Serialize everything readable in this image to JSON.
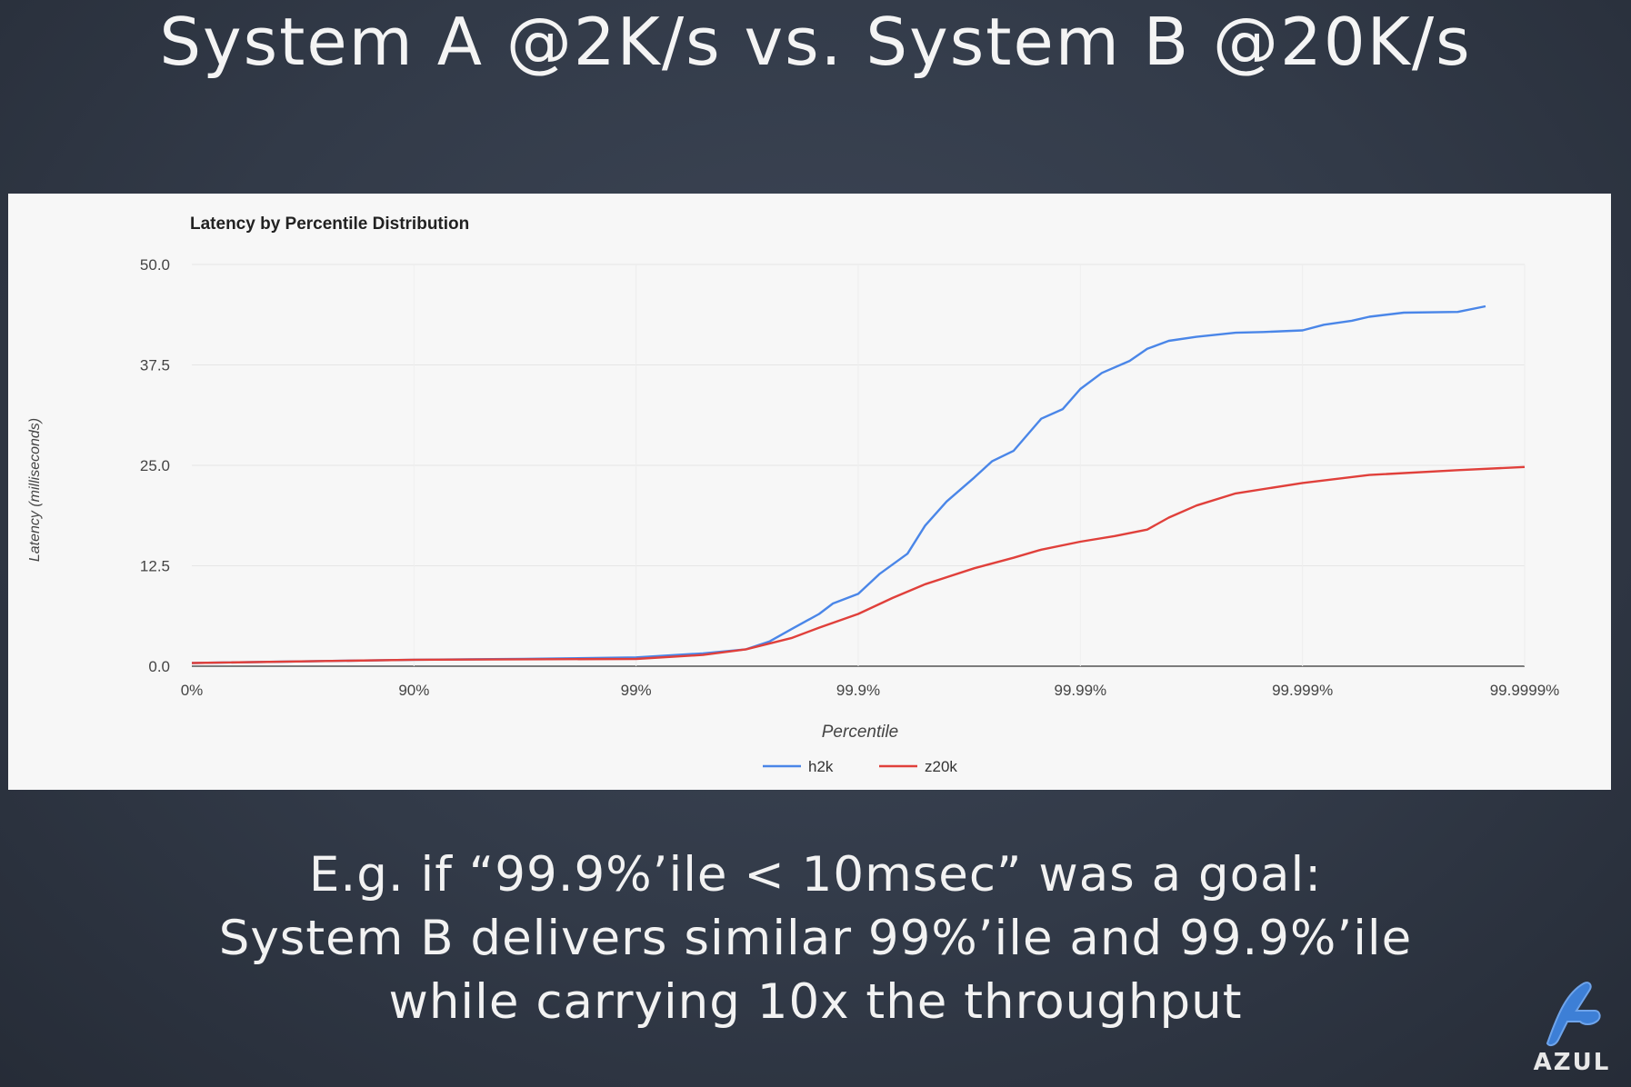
{
  "slide": {
    "title": "System A @2K/s vs. System B @20K/s",
    "caption_lines": [
      "E.g. if “99.9%’ile < 10msec” was a goal:",
      "System B delivers similar 99%’ile and 99.9%’ile",
      "while carrying 10x the throughput"
    ],
    "logo_text": "AZUL",
    "logo_icon": "azul-logo-icon"
  },
  "chart_data": {
    "type": "line",
    "title": "Latency by Percentile Distribution",
    "xlabel": "Percentile",
    "ylabel": "Latency (milliseconds)",
    "x_scale": "log10(1/(1-percentile))",
    "x_ticks": [
      "0%",
      "90%",
      "99%",
      "99.9%",
      "99.99%",
      "99.999%",
      "99.9999%"
    ],
    "y_ticks": [
      "0.0",
      "12.5",
      "25.0",
      "37.5",
      "50.0"
    ],
    "ylim": [
      0,
      50
    ],
    "grid": true,
    "legend_position": "bottom",
    "colors": {
      "h2k": "#4a86e8",
      "z20k": "#e0403b"
    },
    "series": [
      {
        "name": "h2k",
        "points": [
          [
            "0%",
            0.4
          ],
          [
            "90%",
            0.8
          ],
          [
            "96.8%",
            0.9
          ],
          [
            "99%",
            1.1
          ],
          [
            "99.5%",
            1.6
          ],
          [
            "99.68%",
            2.1
          ],
          [
            "99.75%",
            3.1
          ],
          [
            "99.8%",
            4.6
          ],
          [
            "99.85%",
            6.5
          ],
          [
            "99.87%",
            7.8
          ],
          [
            "99.9%",
            9.0
          ],
          [
            "99.92%",
            11.5
          ],
          [
            "99.94%",
            14.0
          ],
          [
            "99.95%",
            17.5
          ],
          [
            "99.96%",
            20.5
          ],
          [
            "99.97%",
            23.5
          ],
          [
            "99.975%",
            25.5
          ],
          [
            "99.98%",
            26.8
          ],
          [
            "99.985%",
            30.8
          ],
          [
            "99.988%",
            32.0
          ],
          [
            "99.99%",
            34.5
          ],
          [
            "99.992%",
            36.5
          ],
          [
            "99.994%",
            38.0
          ],
          [
            "99.995%",
            39.5
          ],
          [
            "99.996%",
            40.5
          ],
          [
            "99.997%",
            41.0
          ],
          [
            "99.998%",
            41.5
          ],
          [
            "99.9985%",
            41.6
          ],
          [
            "99.999%",
            41.8
          ],
          [
            "99.9992%",
            42.5
          ],
          [
            "99.9994%",
            43.0
          ],
          [
            "99.9995%",
            43.5
          ],
          [
            "99.99965%",
            44.0
          ],
          [
            "99.9998%",
            44.1
          ],
          [
            "99.99985%",
            44.8
          ]
        ]
      },
      {
        "name": "z20k",
        "points": [
          [
            "0%",
            0.4
          ],
          [
            "90%",
            0.8
          ],
          [
            "99%",
            0.9
          ],
          [
            "99.5%",
            1.4
          ],
          [
            "99.68%",
            2.1
          ],
          [
            "99.8%",
            3.5
          ],
          [
            "99.85%",
            4.8
          ],
          [
            "99.9%",
            6.5
          ],
          [
            "99.93%",
            8.5
          ],
          [
            "99.95%",
            10.2
          ],
          [
            "99.97%",
            12.2
          ],
          [
            "99.98%",
            13.5
          ],
          [
            "99.985%",
            14.5
          ],
          [
            "99.99%",
            15.5
          ],
          [
            "99.993%",
            16.2
          ],
          [
            "99.995%",
            17.0
          ],
          [
            "99.996%",
            18.5
          ],
          [
            "99.997%",
            20.0
          ],
          [
            "99.998%",
            21.5
          ],
          [
            "99.999%",
            22.8
          ],
          [
            "99.9995%",
            23.8
          ],
          [
            "99.9998%",
            24.4
          ],
          [
            "99.9999%",
            24.8
          ]
        ]
      }
    ]
  }
}
